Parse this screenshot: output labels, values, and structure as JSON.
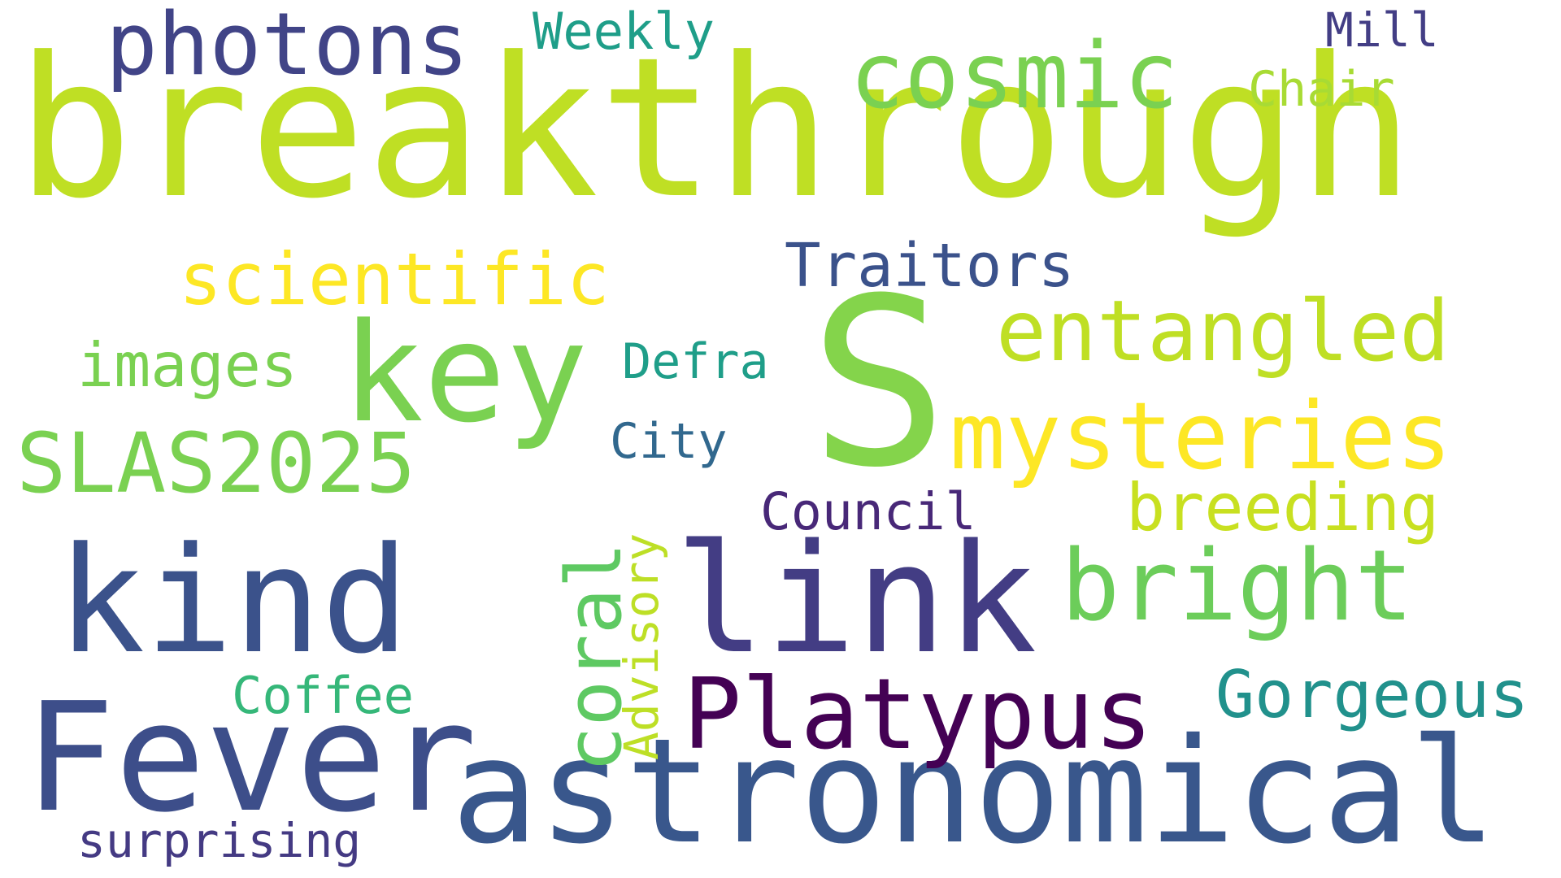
{
  "word_cloud": {
    "words": [
      {
        "text": "breakthrough",
        "color": "#bfdf24"
      },
      {
        "text": "S",
        "color": "#84d44b"
      },
      {
        "text": "astronomical",
        "color": "#39578c"
      },
      {
        "text": "Fever",
        "color": "#3d4e8a"
      },
      {
        "text": "link",
        "color": "#433d84"
      },
      {
        "text": "kind",
        "color": "#3b528b"
      },
      {
        "text": "key",
        "color": "#7ad151"
      },
      {
        "text": "mysteries",
        "color": "#fde725"
      },
      {
        "text": "Platypus",
        "color": "#440154"
      },
      {
        "text": "cosmic",
        "color": "#7ad151"
      },
      {
        "text": "photons",
        "color": "#414487"
      },
      {
        "text": "entangled",
        "color": "#bfdf24"
      },
      {
        "text": "bright",
        "color": "#6ccd5a"
      },
      {
        "text": "scientific",
        "color": "#fde725"
      },
      {
        "text": "SLAS2025",
        "color": "#7ad151"
      },
      {
        "text": "coral",
        "color": "#5ec962"
      },
      {
        "text": "Gorgeous",
        "color": "#21918c"
      },
      {
        "text": "breeding",
        "color": "#c8e020"
      },
      {
        "text": "images",
        "color": "#7ad151"
      },
      {
        "text": "Traitors",
        "color": "#3b528b"
      },
      {
        "text": "Advisory",
        "color": "#bddf26"
      },
      {
        "text": "Coffee",
        "color": "#35b779"
      },
      {
        "text": "Council",
        "color": "#482878"
      },
      {
        "text": "surprising",
        "color": "#443a83"
      },
      {
        "text": "Defra",
        "color": "#1f9e89"
      },
      {
        "text": "City",
        "color": "#31688e"
      },
      {
        "text": "Weekly",
        "color": "#1f9e89"
      },
      {
        "text": "Chair",
        "color": "#a8db34"
      },
      {
        "text": "Mill",
        "color": "#433e85"
      }
    ]
  }
}
